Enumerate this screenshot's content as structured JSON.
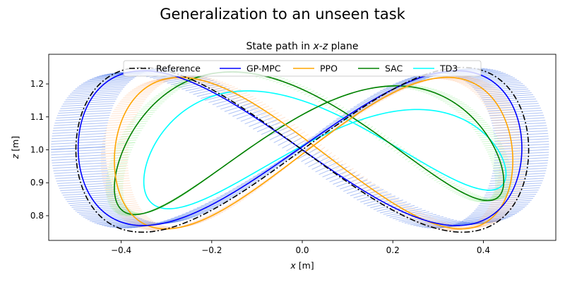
{
  "figure": {
    "suptitle": "Generalization to an unseen task"
  },
  "chart_data": {
    "type": "line",
    "title": "State path in x-z plane",
    "title_parts": [
      "State path in ",
      "x",
      "-",
      "z",
      " plane"
    ],
    "xlabel": "x [m]",
    "xlabel_parts": [
      "x",
      " [m]"
    ],
    "ylabel": "z [m]",
    "ylabel_parts": [
      "z",
      " [m]"
    ],
    "xlim": [
      -0.56,
      0.56
    ],
    "ylim": [
      0.725,
      1.29
    ],
    "xticks": [
      -0.4,
      -0.2,
      0.0,
      0.2,
      0.4
    ],
    "xtick_labels": [
      "−0.4",
      "−0.2",
      "0.0",
      "0.2",
      "0.4"
    ],
    "yticks": [
      0.8,
      0.9,
      1.0,
      1.1,
      1.2
    ],
    "ytick_labels": [
      "0.8",
      "0.9",
      "1.0",
      "1.1",
      "1.2"
    ],
    "grid": false,
    "legend_position": "top-center",
    "legend_columns": 5,
    "series": [
      {
        "name": "Reference",
        "color": "#000000",
        "style": "dashdot",
        "params": {
          "ax": 0.5,
          "az": 0.25,
          "cx": 0.0,
          "cz": 1.0,
          "phase": 0.0,
          "skew": 0.0
        },
        "band": null
      },
      {
        "name": "GP-MPC",
        "color": "#0000ff",
        "style": "solid",
        "params": {
          "ax": 0.49,
          "az": 0.235,
          "cx": -0.005,
          "cz": 1.005,
          "phase": 0.0,
          "skew": 0.0
        },
        "band": {
          "color": "#4a78e8",
          "opacity": 0.45,
          "width_x": 0.06,
          "width_z": 0.02
        }
      },
      {
        "name": "PPO",
        "color": "#ffa500",
        "style": "solid",
        "params": {
          "ax": 0.44,
          "az": 0.23,
          "cx": 0.025,
          "cz": 0.99,
          "phase": 0.05,
          "skew": 0.0
        },
        "band": {
          "color": "#ffb27a",
          "opacity": 0.35,
          "width_x": 0.03,
          "width_z": 0.012
        }
      },
      {
        "name": "SAC",
        "color": "#008000",
        "style": "solid",
        "params": {
          "ax": 0.43,
          "az": 0.195,
          "cx": 0.015,
          "cz": 1.02,
          "phase": 0.35,
          "skew": 0.03
        },
        "band": {
          "color": "#90ee90",
          "opacity": 0.4,
          "width_x": 0.02,
          "width_z": 0.01
        }
      },
      {
        "name": "TD3",
        "color": "#00ffff",
        "style": "solid",
        "params": {
          "ax": 0.4,
          "az": 0.15,
          "cx": 0.05,
          "cz": 1.0,
          "phase": 0.3,
          "skew": 0.04
        },
        "band": null
      }
    ]
  }
}
